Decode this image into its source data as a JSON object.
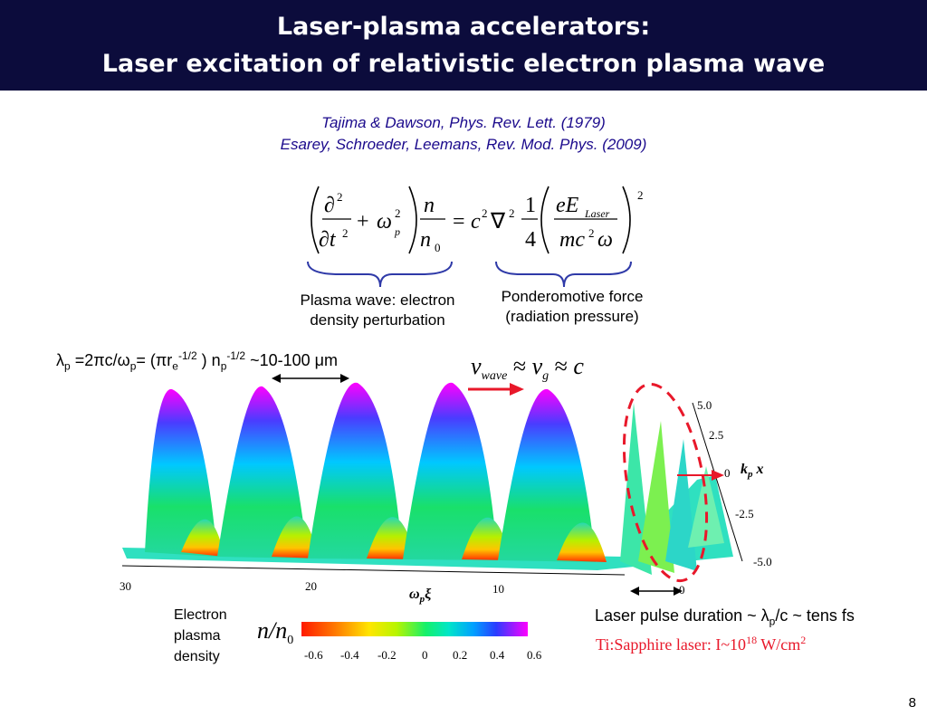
{
  "title": {
    "line1": "Laser-plasma accelerators:",
    "line2": "Laser excitation of relativistic electron plasma wave"
  },
  "references": {
    "ref1": "Tajima & Dawson, Phys. Rev. Lett. (1979)",
    "ref2": "Esarey, Schroeder, Leemans, Rev. Mod. Phys. (2009)"
  },
  "equation_labels": {
    "plasma_wave_line1": "Plasma wave: electron",
    "plasma_wave_line2": "density perturbation",
    "ponderomotive_line1": "Ponderomotive force",
    "ponderomotive_line2": "(radiation pressure)"
  },
  "wavelength_expr": {
    "lambda": "λ",
    "p_sub": "p",
    "eq": " =2πc/ω",
    "p_sub2": "p",
    "rest1": "= (πr",
    "e_sub": "e",
    "exp1": "-1/2",
    "rest2": " ) n",
    "p_sub3": "p",
    "exp2": "-1/2",
    "rest3": " ~10-100 μm"
  },
  "velocity_relation": {
    "v": "v",
    "wave_sub": "wave",
    "approx1": "≈",
    "vg": "v",
    "g_sub": "g",
    "approx2": "≈",
    "c": "c"
  },
  "plot": {
    "x_ticks": [
      "30",
      "20",
      "10",
      "0"
    ],
    "x_label": "ω",
    "x_label_sub": "p",
    "x_label_var": "ξ",
    "y_ticks": [
      "5.0",
      "2.5",
      "0",
      "-2.5",
      "-5.0"
    ],
    "y_label": "k",
    "y_label_sub": "p",
    "y_label_var": "x"
  },
  "colorbar": {
    "label_line1": "Electron",
    "label_line2": "plasma",
    "label_line3": "density",
    "symbol": "n/n",
    "symbol_sub": "0",
    "ticks": [
      "-0.6",
      "-0.4",
      "-0.2",
      "0",
      "0.2",
      "0.4",
      "0.6"
    ]
  },
  "laser": {
    "duration_text_pre": "Laser pulse duration ~ λ",
    "duration_text_sub": "p",
    "duration_text_post": "/c ~ tens fs",
    "ti_sapphire_pre": "Ti:Sapphire laser:  I~10",
    "ti_sapphire_exp": "18",
    "ti_sapphire_post": " W/cm",
    "ti_sapphire_exp2": "2"
  },
  "page_number": "8"
}
